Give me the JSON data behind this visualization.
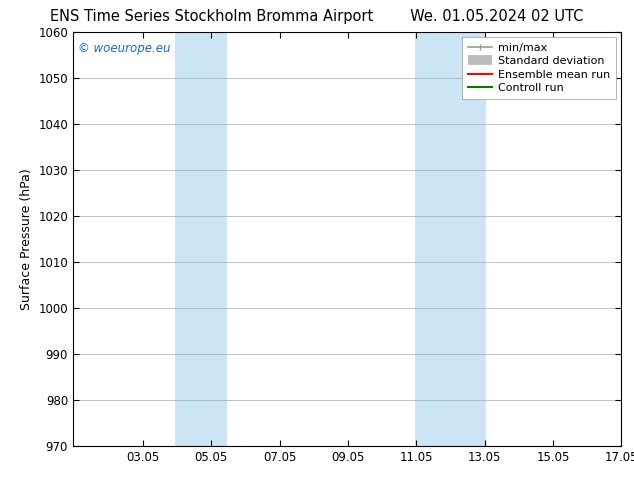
{
  "title_left": "ENS Time Series Stockholm Bromma Airport",
  "title_right": "We. 01.05.2024 02 UTC",
  "ylabel": "Surface Pressure (hPa)",
  "xlim": [
    1.0,
    17.05
  ],
  "ylim": [
    970,
    1060
  ],
  "yticks": [
    970,
    980,
    990,
    1000,
    1010,
    1020,
    1030,
    1040,
    1050,
    1060
  ],
  "xticks": [
    3.05,
    5.05,
    7.05,
    9.05,
    11.05,
    13.05,
    15.05,
    17.05
  ],
  "xtick_labels": [
    "03.05",
    "05.05",
    "07.05",
    "09.05",
    "11.05",
    "13.05",
    "15.05",
    "17.05"
  ],
  "shaded_bands": [
    {
      "xmin": 4.0,
      "xmax": 5.5,
      "color": "#cce5f5"
    },
    {
      "xmin": 11.0,
      "xmax": 13.1,
      "color": "#cce5f5"
    }
  ],
  "watermark": "© woeurope.eu",
  "watermark_color": "#2266cc",
  "background_color": "#ffffff",
  "grid_color": "#aaaaaa",
  "legend": [
    {
      "label": "min/max",
      "color": "#999999",
      "lw": 1.2,
      "style": "minmax"
    },
    {
      "label": "Standard deviation",
      "color": "#bbbbbb",
      "lw": 7,
      "style": "band"
    },
    {
      "label": "Ensemble mean run",
      "color": "#ff0000",
      "lw": 1.5,
      "style": "line"
    },
    {
      "label": "Controll run",
      "color": "#007700",
      "lw": 1.5,
      "style": "line"
    }
  ],
  "title_fontsize": 10.5,
  "tick_fontsize": 8.5,
  "ylabel_fontsize": 9,
  "legend_fontsize": 8
}
